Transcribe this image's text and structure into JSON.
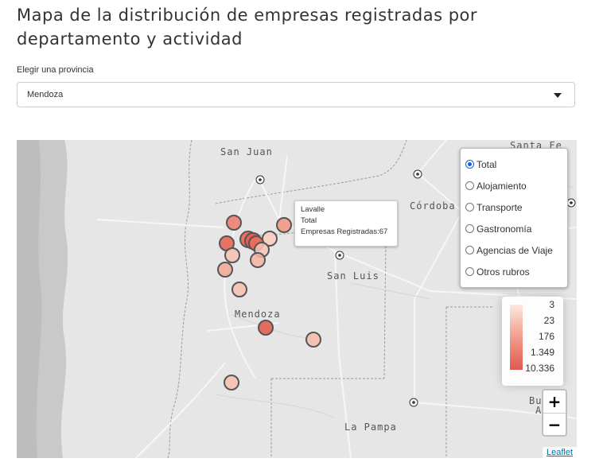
{
  "page": {
    "title": "Mapa de la distribución de empresas registradas por departamento y actividad"
  },
  "province_select": {
    "label": "Elegir una provincia",
    "selected": "Mendoza"
  },
  "map": {
    "place_labels": [
      "San Juan",
      "Córdoba",
      "San Luis",
      "Mendoza",
      "La Pampa",
      "Santa Fe",
      "Bu",
      "A"
    ],
    "tooltip": {
      "department": "Lavalle",
      "activity": "Total",
      "value_text": "Empresas Registradas:67"
    },
    "layers": {
      "selected": "Total",
      "options": [
        "Total",
        "Alojamiento",
        "Transporte",
        "Gastronomía",
        "Agencias de Viaje",
        "Otros rubros"
      ]
    },
    "legend": {
      "labels": [
        "3",
        "23",
        "176",
        "1.349",
        "10.336"
      ],
      "colors": [
        "#fde9e2",
        "#f4b6a4",
        "#ec8575",
        "#de5b50"
      ]
    },
    "zoom": {
      "in_label": "+",
      "out_label": "−"
    },
    "attribution": "Leaflet"
  }
}
